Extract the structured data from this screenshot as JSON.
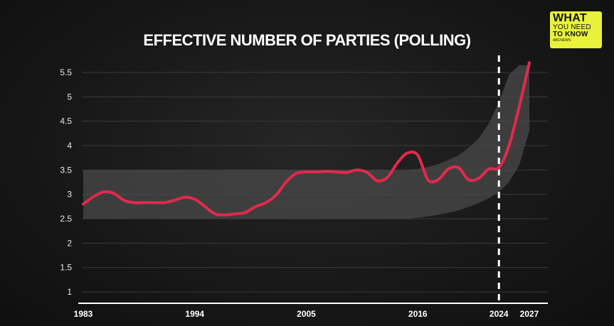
{
  "chart_data": {
    "type": "line",
    "title": "EFFECTIVE NUMBER OF PARTIES (POLLING)",
    "x_ticks": [
      "1983",
      "1994",
      "2005",
      "2016",
      "2024",
      "2027"
    ],
    "y_ticks": [
      "1",
      "1.5",
      "2",
      "2.5",
      "3",
      "3.5",
      "4",
      "4.5",
      "5",
      "5.5"
    ],
    "xlim": [
      1983,
      2027
    ],
    "ylim": [
      0.75,
      5.75
    ],
    "grid": true,
    "marker_line_x": 2024,
    "series": [
      {
        "color": "#e3294c",
        "x": [
          1983,
          1984,
          1985,
          1986,
          1987,
          1988,
          1989,
          1990,
          1991,
          1992,
          1993,
          1994,
          1995,
          1996,
          1997,
          1998,
          1999,
          2000,
          2001,
          2002,
          2003,
          2004,
          2005,
          2006,
          2007,
          2008,
          2009,
          2010,
          2011,
          2012,
          2013,
          2014,
          2015,
          2016,
          2017,
          2018,
          2019,
          2020,
          2021,
          2022,
          2023,
          2024,
          2025,
          2026,
          2027
        ],
        "values": [
          2.8,
          2.95,
          3.05,
          3.02,
          2.88,
          2.83,
          2.83,
          2.83,
          2.83,
          2.88,
          2.94,
          2.9,
          2.75,
          2.6,
          2.58,
          2.6,
          2.63,
          2.75,
          2.83,
          2.98,
          3.25,
          3.43,
          3.46,
          3.46,
          3.47,
          3.46,
          3.45,
          3.5,
          3.45,
          3.28,
          3.35,
          3.65,
          3.85,
          3.8,
          3.3,
          3.3,
          3.52,
          3.55,
          3.3,
          3.33,
          3.52,
          3.55,
          4.0,
          4.8,
          5.7
        ]
      }
    ],
    "band": {
      "color": "#4a4a4a",
      "lower": [
        2.5,
        2.5,
        2.5,
        2.5,
        2.5,
        2.5,
        2.5,
        2.5,
        2.5,
        2.5,
        2.5,
        2.5,
        2.5,
        2.5,
        2.5,
        2.5,
        2.5,
        2.5,
        2.5,
        2.5,
        2.5,
        2.5,
        2.5,
        2.5,
        2.5,
        2.5,
        2.5,
        2.5,
        2.5,
        2.5,
        2.5,
        2.5,
        2.5,
        2.52,
        2.55,
        2.58,
        2.62,
        2.67,
        2.74,
        2.82,
        2.92,
        3.05,
        3.25,
        3.6,
        4.3
      ],
      "upper": [
        3.5,
        3.5,
        3.5,
        3.5,
        3.5,
        3.5,
        3.5,
        3.5,
        3.5,
        3.5,
        3.5,
        3.5,
        3.5,
        3.5,
        3.5,
        3.5,
        3.5,
        3.5,
        3.5,
        3.5,
        3.5,
        3.5,
        3.5,
        3.5,
        3.5,
        3.5,
        3.5,
        3.5,
        3.5,
        3.5,
        3.5,
        3.5,
        3.5,
        3.52,
        3.56,
        3.62,
        3.7,
        3.8,
        3.95,
        4.15,
        4.45,
        4.9,
        5.45,
        5.65,
        5.65
      ]
    }
  },
  "logo": {
    "line1": "WHAT",
    "line2": "YOU NEED",
    "line3": "TO KNOW",
    "line4": "ABCNEWS"
  }
}
